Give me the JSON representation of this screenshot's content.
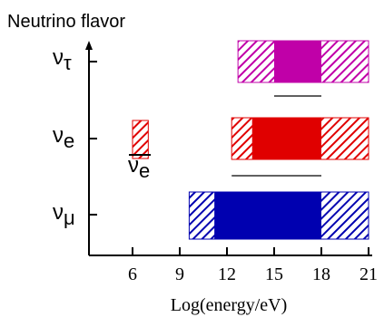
{
  "chart_data": {
    "type": "bar",
    "orientation": "horizontal-ranges",
    "title": "",
    "ylabel": "Neutrino flavor",
    "xlabel": "Log(energy/eV)",
    "xlim": [
      3,
      21
    ],
    "xticks": [
      6,
      9,
      12,
      15,
      18,
      21
    ],
    "xtick_labels": [
      "6",
      "9",
      "12",
      "15",
      "18",
      "21"
    ],
    "grid": false,
    "legend": "none",
    "rows": [
      {
        "label_base": "ν",
        "label_sub": "τ",
        "color": "#c000a8",
        "hatched_range": [
          12.7,
          21.0
        ],
        "solid_range": [
          15.0,
          18.0
        ]
      },
      {
        "label_base": "ν",
        "label_sub": "e",
        "color": "#e00000",
        "hatched_range": [
          12.3,
          21.0
        ],
        "solid_range": [
          13.6,
          18.0
        ]
      },
      {
        "label_base": "ν",
        "label_sub": "e",
        "label_overbar": true,
        "color": "#e00000",
        "hatched_range": [
          6.0,
          7.0
        ],
        "solid_range": null
      },
      {
        "label_base": "ν",
        "label_sub": "μ",
        "color": "#0000b0",
        "hatched_range": [
          9.6,
          21.0
        ],
        "solid_range": [
          11.2,
          18.0
        ]
      }
    ],
    "separator_lines": [
      {
        "x_range": [
          15.0,
          18.0
        ]
      },
      {
        "x_range": [
          12.3,
          18.0
        ]
      }
    ]
  }
}
